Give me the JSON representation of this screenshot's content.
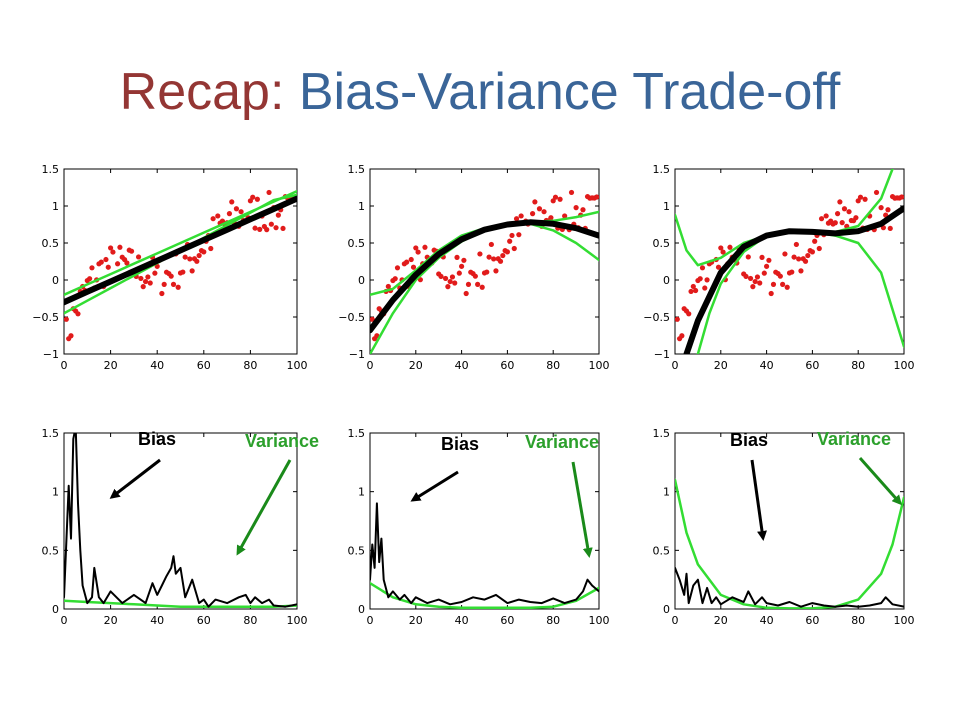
{
  "slide": {
    "title_prefix": "Recap:",
    "title_main": "Bias-Variance Trade-off"
  },
  "colors": {
    "title_prefix": "#943634",
    "title_main": "#3a6598",
    "data_points": "#e11b1b",
    "mean_fit": "#000000",
    "band": "#33dd33",
    "bias_arrow": "#000000",
    "variance_arrow": "#1a8a1a",
    "variance_label": "#2ca02c"
  },
  "annotations": {
    "bias": "Bias",
    "variance": "Variance"
  },
  "chart_data": [
    {
      "type": "scatter+line",
      "row": "top",
      "model": "linear",
      "xlim": [
        0,
        100
      ],
      "ylim": [
        -1,
        1.5
      ],
      "xticks": [
        "0",
        "20",
        "40",
        "60",
        "80",
        "100"
      ],
      "yticks": [
        "−1",
        "−0.5",
        "0",
        "0.5",
        "1",
        "1.5"
      ],
      "fit": {
        "x": [
          0,
          10,
          20,
          30,
          40,
          50,
          60,
          70,
          80,
          90,
          100
        ],
        "y": [
          -0.3,
          -0.16,
          -0.02,
          0.12,
          0.26,
          0.4,
          0.54,
          0.68,
          0.82,
          0.96,
          1.1
        ]
      },
      "upper": {
        "x": [
          0,
          10,
          20,
          30,
          40,
          50,
          60,
          70,
          80,
          90,
          100
        ],
        "y": [
          -0.2,
          -0.06,
          0.08,
          0.22,
          0.36,
          0.5,
          0.64,
          0.78,
          0.92,
          1.06,
          1.2
        ]
      },
      "lower": {
        "x": [
          0,
          10,
          20,
          30,
          40,
          50,
          60,
          70,
          80,
          90,
          100
        ],
        "y": [
          -0.45,
          -0.28,
          -0.11,
          0.06,
          0.23,
          0.4,
          0.57,
          0.74,
          0.91,
          1.08,
          1.15
        ]
      }
    },
    {
      "type": "scatter+line",
      "row": "top",
      "model": "quadratic",
      "xlim": [
        0,
        100
      ],
      "ylim": [
        -1,
        1.5
      ],
      "xticks": [
        "0",
        "20",
        "40",
        "60",
        "80",
        "100"
      ],
      "yticks": [
        "−1",
        "−0.5",
        "0",
        "0.5",
        "1",
        "1.5"
      ],
      "fit": {
        "x": [
          0,
          10,
          20,
          30,
          40,
          50,
          60,
          70,
          80,
          90,
          100
        ],
        "y": [
          -0.68,
          -0.27,
          0.07,
          0.35,
          0.55,
          0.68,
          0.75,
          0.78,
          0.76,
          0.7,
          0.6
        ]
      },
      "upper": {
        "x": [
          0,
          10,
          20,
          30,
          40,
          50,
          60,
          70,
          80,
          90,
          100
        ],
        "y": [
          -0.2,
          -0.12,
          0.13,
          0.4,
          0.6,
          0.7,
          0.76,
          0.78,
          0.8,
          0.85,
          0.92
        ]
      },
      "lower": {
        "x": [
          0,
          10,
          20,
          30,
          40,
          50,
          60,
          70,
          80,
          90,
          100
        ],
        "y": [
          -1,
          -0.45,
          0.0,
          0.3,
          0.52,
          0.67,
          0.74,
          0.76,
          0.67,
          0.5,
          0.27
        ]
      }
    },
    {
      "type": "scatter+line",
      "row": "top",
      "model": "cubic",
      "xlim": [
        0,
        100
      ],
      "ylim": [
        -1,
        1.5
      ],
      "xticks": [
        "0",
        "20",
        "40",
        "60",
        "80",
        "100"
      ],
      "yticks": [
        "−1",
        "−0.5",
        "0",
        "0.5",
        "1",
        "1.5"
      ],
      "fit": {
        "x": [
          5,
          10,
          20,
          30,
          40,
          50,
          60,
          70,
          80,
          90,
          100
        ],
        "y": [
          -1,
          -0.55,
          0.1,
          0.45,
          0.6,
          0.66,
          0.65,
          0.63,
          0.66,
          0.76,
          0.97
        ]
      },
      "upper": {
        "x": [
          0,
          5,
          10,
          20,
          30,
          40,
          50,
          60,
          70,
          80,
          90,
          95
        ],
        "y": [
          0.88,
          0.4,
          0.2,
          0.3,
          0.5,
          0.6,
          0.66,
          0.66,
          0.65,
          0.73,
          1.1,
          1.5
        ]
      },
      "lower": {
        "x": [
          10,
          15,
          20,
          30,
          40,
          50,
          60,
          70,
          80,
          90,
          100
        ],
        "y": [
          -1,
          -0.45,
          -0.05,
          0.38,
          0.6,
          0.67,
          0.65,
          0.6,
          0.5,
          0.1,
          -0.9
        ]
      }
    },
    {
      "type": "line",
      "row": "bottom",
      "model": "linear",
      "xlim": [
        0,
        100
      ],
      "ylim": [
        0,
        1.5
      ],
      "xticks": [
        "0",
        "20",
        "40",
        "60",
        "80",
        "100"
      ],
      "yticks": [
        "0",
        "0.5",
        "1",
        "1.5"
      ],
      "bias": {
        "x": [
          0,
          2,
          3,
          4,
          5,
          6,
          7,
          8,
          10,
          12,
          13,
          15,
          17,
          20,
          25,
          30,
          35,
          38,
          40,
          42,
          44,
          46,
          47,
          48,
          50,
          52,
          55,
          58,
          60,
          62,
          65,
          70,
          75,
          78,
          80,
          82,
          85,
          88,
          90,
          95,
          100
        ],
        "y": [
          0.1,
          1.05,
          0.6,
          1.45,
          1.55,
          0.9,
          0.5,
          0.2,
          0.05,
          0.1,
          0.35,
          0.1,
          0.05,
          0.15,
          0.05,
          0.12,
          0.05,
          0.22,
          0.12,
          0.2,
          0.28,
          0.35,
          0.45,
          0.3,
          0.35,
          0.1,
          0.25,
          0.05,
          0.08,
          0.02,
          0.08,
          0.05,
          0.1,
          0.12,
          0.05,
          0.1,
          0.05,
          0.08,
          0.03,
          0.02,
          0.04
        ]
      },
      "variance": {
        "x": [
          0,
          10,
          20,
          30,
          40,
          50,
          60,
          70,
          80,
          90,
          100
        ],
        "y": [
          0.07,
          0.06,
          0.05,
          0.04,
          0.03,
          0.02,
          0.02,
          0.02,
          0.02,
          0.02,
          0.03
        ]
      }
    },
    {
      "type": "line",
      "row": "bottom",
      "model": "quadratic",
      "xlim": [
        0,
        100
      ],
      "ylim": [
        0,
        1.5
      ],
      "xticks": [
        "0",
        "20",
        "40",
        "60",
        "80",
        "100"
      ],
      "yticks": [
        "0",
        "0.5",
        "1",
        "1.5"
      ],
      "bias": {
        "x": [
          0,
          1,
          2,
          3,
          4,
          5,
          6,
          8,
          10,
          13,
          15,
          18,
          20,
          25,
          30,
          35,
          40,
          45,
          50,
          55,
          60,
          65,
          70,
          75,
          80,
          85,
          90,
          93,
          95,
          97,
          100
        ],
        "y": [
          0.25,
          0.55,
          0.35,
          0.9,
          0.4,
          0.6,
          0.25,
          0.1,
          0.15,
          0.08,
          0.12,
          0.05,
          0.1,
          0.05,
          0.08,
          0.04,
          0.06,
          0.1,
          0.08,
          0.12,
          0.05,
          0.08,
          0.06,
          0.05,
          0.09,
          0.05,
          0.08,
          0.15,
          0.25,
          0.2,
          0.15
        ]
      },
      "variance": {
        "x": [
          0,
          10,
          20,
          30,
          40,
          50,
          60,
          70,
          80,
          90,
          100
        ],
        "y": [
          0.22,
          0.1,
          0.04,
          0.02,
          0.01,
          0.01,
          0.01,
          0.01,
          0.02,
          0.07,
          0.18
        ]
      }
    },
    {
      "type": "line",
      "row": "bottom",
      "model": "cubic",
      "xlim": [
        0,
        100
      ],
      "ylim": [
        0,
        1.5
      ],
      "xticks": [
        "0",
        "20",
        "40",
        "60",
        "80",
        "100"
      ],
      "yticks": [
        "0",
        "0.5",
        "1",
        "1.5"
      ],
      "bias": {
        "x": [
          0,
          2,
          4,
          5,
          6,
          8,
          10,
          12,
          14,
          16,
          18,
          20,
          25,
          30,
          32,
          35,
          38,
          40,
          45,
          50,
          55,
          60,
          65,
          70,
          75,
          80,
          85,
          90,
          92,
          95,
          100
        ],
        "y": [
          0.35,
          0.25,
          0.12,
          0.3,
          0.05,
          0.2,
          0.25,
          0.05,
          0.18,
          0.05,
          0.1,
          0.04,
          0.1,
          0.06,
          0.15,
          0.04,
          0.1,
          0.05,
          0.03,
          0.06,
          0.02,
          0.05,
          0.03,
          0.02,
          0.03,
          0.02,
          0.03,
          0.05,
          0.1,
          0.04,
          0.02
        ]
      },
      "variance": {
        "x": [
          0,
          5,
          10,
          20,
          30,
          40,
          50,
          60,
          70,
          80,
          90,
          95,
          100
        ],
        "y": [
          1.1,
          0.65,
          0.38,
          0.12,
          0.04,
          0.01,
          0.005,
          0.005,
          0.02,
          0.08,
          0.3,
          0.55,
          0.95
        ]
      }
    }
  ]
}
